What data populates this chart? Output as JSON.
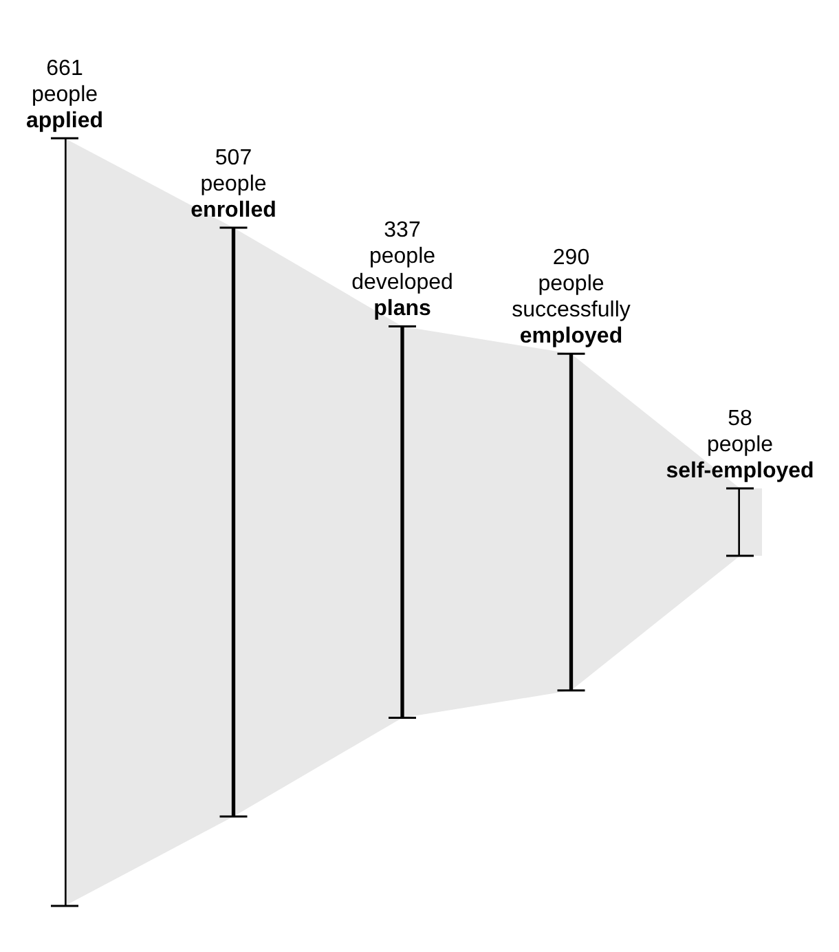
{
  "chart_data": {
    "type": "other",
    "categories": [
      "people applied",
      "people enrolled",
      "people developed plans",
      "people successfully employed",
      "people self-employed"
    ],
    "values": [
      661,
      507,
      337,
      290,
      58
    ],
    "color": "#e8e8e8",
    "data_labels": true
  }
}
